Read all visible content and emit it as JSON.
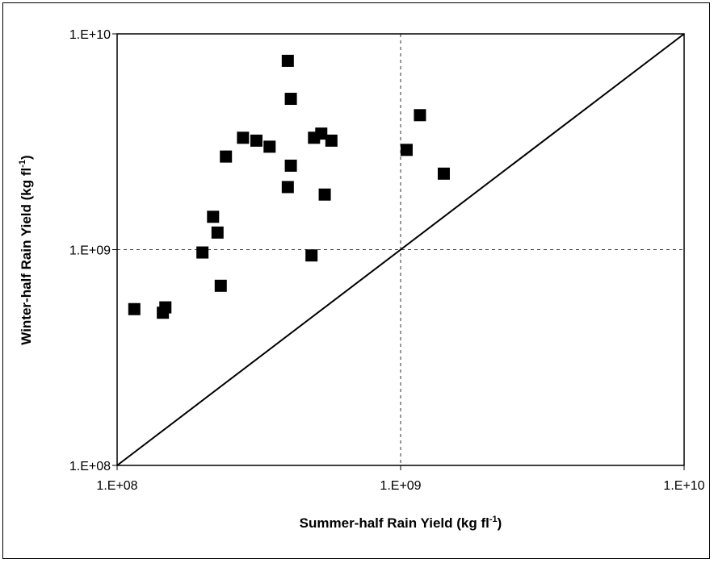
{
  "chart_data": {
    "type": "scatter",
    "title": "",
    "xlabel": "Summer-half Rain Yield (kg fl",
    "xlabel_sup": "-1",
    "xlabel_end": ")",
    "ylabel": "Winter-half Rain Yield (kg fl",
    "ylabel_sup": "-1",
    "ylabel_end": ")",
    "x_scale": "log",
    "y_scale": "log",
    "xlim": [
      100000000,
      10000000000
    ],
    "ylim": [
      100000000,
      10000000000
    ],
    "x_ticks": [
      {
        "value": 100000000,
        "label": "1.E+08"
      },
      {
        "value": 1000000000,
        "label": "1.E+09"
      },
      {
        "value": 10000000000,
        "label": "1.E+10"
      }
    ],
    "y_ticks": [
      {
        "value": 100000000,
        "label": "1.E+08"
      },
      {
        "value": 1000000000,
        "label": "1.E+09"
      },
      {
        "value": 10000000000,
        "label": "1.E+10"
      }
    ],
    "grid": "dashed at 1.E+09",
    "reference_line": "1:1",
    "marker": "filled square",
    "marker_color": "#000000",
    "points": [
      {
        "x": 115000000,
        "y": 530000000
      },
      {
        "x": 145000000,
        "y": 510000000
      },
      {
        "x": 148000000,
        "y": 540000000
      },
      {
        "x": 200000000,
        "y": 970000000
      },
      {
        "x": 218000000,
        "y": 1420000000
      },
      {
        "x": 226000000,
        "y": 1200000000
      },
      {
        "x": 232000000,
        "y": 680000000
      },
      {
        "x": 242000000,
        "y": 2700000000
      },
      {
        "x": 278000000,
        "y": 3300000000
      },
      {
        "x": 310000000,
        "y": 3200000000
      },
      {
        "x": 345000000,
        "y": 3000000000
      },
      {
        "x": 400000000,
        "y": 7500000000
      },
      {
        "x": 400000000,
        "y": 1950000000
      },
      {
        "x": 410000000,
        "y": 5000000000
      },
      {
        "x": 410000000,
        "y": 2450000000
      },
      {
        "x": 485000000,
        "y": 940000000
      },
      {
        "x": 495000000,
        "y": 3300000000
      },
      {
        "x": 525000000,
        "y": 3450000000
      },
      {
        "x": 540000000,
        "y": 1800000000
      },
      {
        "x": 570000000,
        "y": 3200000000
      },
      {
        "x": 1050000000,
        "y": 2900000000
      },
      {
        "x": 1170000000,
        "y": 4200000000
      },
      {
        "x": 1420000000,
        "y": 2250000000
      }
    ]
  }
}
